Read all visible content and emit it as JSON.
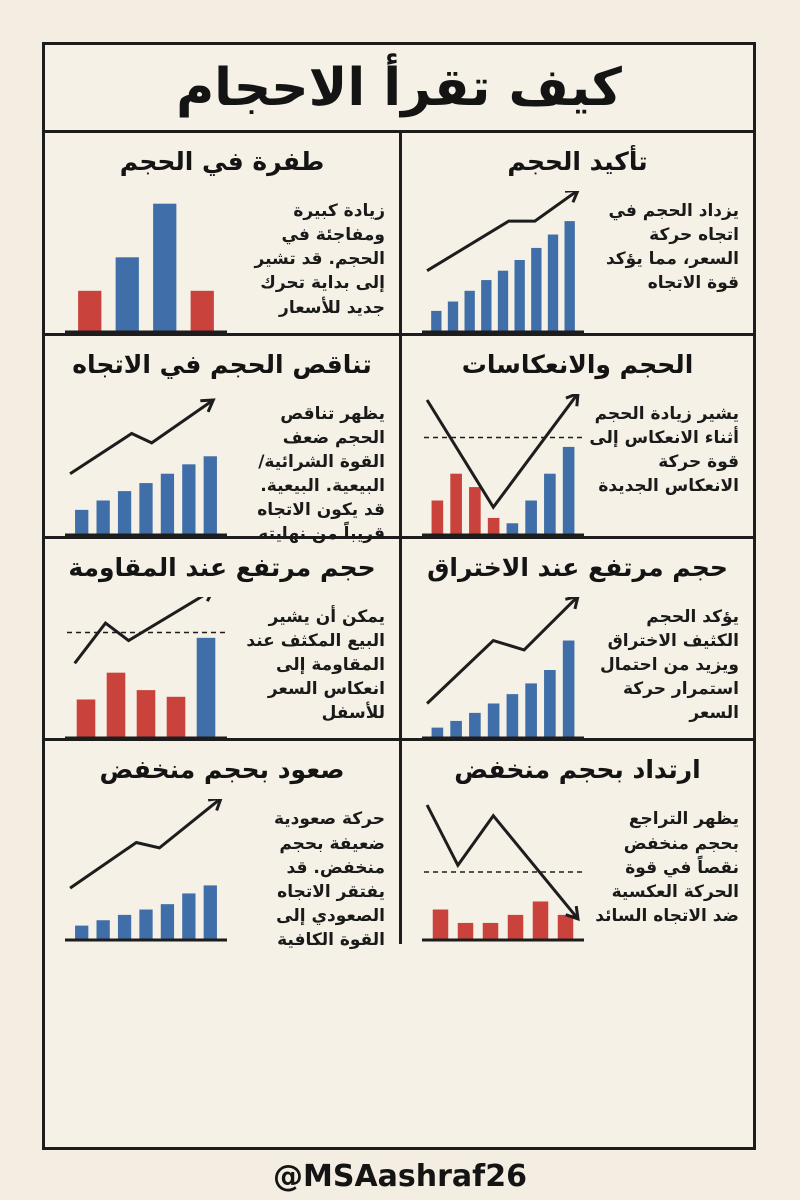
{
  "title": "كيف تقرأ الاحجام",
  "footer_handle": "@MSAashraf26",
  "colors": {
    "blue": "#3f6ea8",
    "red": "#c9423c",
    "ink": "#1d1d1d"
  },
  "panels": [
    {
      "id": "p1",
      "title": "طفرة في الحجم",
      "description": "زيادة كبيرة ومفاجئة في الحجم. قد تشير إلى بداية تحرك جديد للأسعار",
      "bars": [
        {
          "v": 0.3,
          "c": "red"
        },
        {
          "v": 0.55,
          "c": "blue"
        },
        {
          "v": 0.95,
          "c": "blue"
        },
        {
          "v": 0.3,
          "c": "red"
        }
      ],
      "line": [],
      "arrow": false,
      "dashed": null
    },
    {
      "id": "p2",
      "title": "تأكيد الحجم",
      "description": "يزداد الحجم في اتجاه حركة السعر، مما يؤكد قوة الاتجاه",
      "bars": [
        {
          "v": 0.15,
          "c": "blue"
        },
        {
          "v": 0.22,
          "c": "blue"
        },
        {
          "v": 0.3,
          "c": "blue"
        },
        {
          "v": 0.38,
          "c": "blue"
        },
        {
          "v": 0.45,
          "c": "blue"
        },
        {
          "v": 0.53,
          "c": "blue"
        },
        {
          "v": 0.62,
          "c": "blue"
        },
        {
          "v": 0.72,
          "c": "blue"
        },
        {
          "v": 0.82,
          "c": "blue"
        }
      ],
      "line": [
        [
          0.02,
          0.45
        ],
        [
          0.55,
          0.82
        ],
        [
          0.72,
          0.82
        ],
        [
          1.0,
          1.05
        ]
      ],
      "arrow": true,
      "dashed": null
    },
    {
      "id": "p3",
      "title": "تناقص الحجم في الاتجاه",
      "description": "يظهر تناقص الحجم ضعف القوة الشرائية/البيعية. البيعية. قد يكون الاتجاه قريباً من نهايته",
      "bars": [
        {
          "v": 0.18,
          "c": "blue"
        },
        {
          "v": 0.25,
          "c": "blue"
        },
        {
          "v": 0.32,
          "c": "blue"
        },
        {
          "v": 0.38,
          "c": "blue"
        },
        {
          "v": 0.45,
          "c": "blue"
        },
        {
          "v": 0.52,
          "c": "blue"
        },
        {
          "v": 0.58,
          "c": "blue"
        }
      ],
      "line": [
        [
          0.02,
          0.45
        ],
        [
          0.42,
          0.75
        ],
        [
          0.55,
          0.68
        ],
        [
          0.95,
          1.0
        ]
      ],
      "arrow": true,
      "dashed": null
    },
    {
      "id": "p4",
      "title": "الحجم والانعكاسات",
      "description": "يشير زيادة الحجم أثناء الانعكاس إلى قوة حركة الانعكاس الجديدة",
      "bars": [
        {
          "v": 0.25,
          "c": "red"
        },
        {
          "v": 0.45,
          "c": "red"
        },
        {
          "v": 0.35,
          "c": "red"
        },
        {
          "v": 0.12,
          "c": "red"
        },
        {
          "v": 0.08,
          "c": "blue"
        },
        {
          "v": 0.25,
          "c": "blue"
        },
        {
          "v": 0.45,
          "c": "blue"
        },
        {
          "v": 0.65,
          "c": "blue"
        }
      ],
      "line": [
        [
          0.02,
          1.0
        ],
        [
          0.45,
          0.2
        ],
        [
          1.0,
          1.05
        ]
      ],
      "arrow": true,
      "dashed": 0.72
    },
    {
      "id": "p5",
      "title": "حجم مرتفع عند المقاومة",
      "description": "يمكن أن يشير البيع المكثف عند المقاومة إلى انعكاس السعر للأسفل",
      "bars": [
        {
          "v": 0.28,
          "c": "red"
        },
        {
          "v": 0.48,
          "c": "red"
        },
        {
          "v": 0.35,
          "c": "red"
        },
        {
          "v": 0.3,
          "c": "red"
        },
        {
          "v": 0.74,
          "c": "blue"
        }
      ],
      "line": [
        [
          0.05,
          0.55
        ],
        [
          0.25,
          0.85
        ],
        [
          0.4,
          0.72
        ],
        [
          0.95,
          1.1
        ]
      ],
      "arrow": true,
      "dashed": 0.78
    },
    {
      "id": "p6",
      "title": "حجم مرتفع عند الاختراق",
      "description": "يؤكد الحجم الكثيف الاختراق ويزيد من احتمال استمرار حركة السعر",
      "bars": [
        {
          "v": 0.07,
          "c": "blue"
        },
        {
          "v": 0.12,
          "c": "blue"
        },
        {
          "v": 0.18,
          "c": "blue"
        },
        {
          "v": 0.25,
          "c": "blue"
        },
        {
          "v": 0.32,
          "c": "blue"
        },
        {
          "v": 0.4,
          "c": "blue"
        },
        {
          "v": 0.5,
          "c": "blue"
        },
        {
          "v": 0.72,
          "c": "blue"
        }
      ],
      "line": [
        [
          0.02,
          0.25
        ],
        [
          0.45,
          0.72
        ],
        [
          0.65,
          0.65
        ],
        [
          1.0,
          1.05
        ]
      ],
      "arrow": true,
      "dashed": null
    },
    {
      "id": "p7",
      "title": "صعود بحجم منخفض",
      "description": "حركة صعودية ضعيفة بحجم منخفض. قد يفتقر الاتجاه الصعودي إلى القوة الكافية",
      "bars": [
        {
          "v": 0.1,
          "c": "blue"
        },
        {
          "v": 0.14,
          "c": "blue"
        },
        {
          "v": 0.18,
          "c": "blue"
        },
        {
          "v": 0.22,
          "c": "blue"
        },
        {
          "v": 0.26,
          "c": "blue"
        },
        {
          "v": 0.34,
          "c": "blue"
        },
        {
          "v": 0.4,
          "c": "blue"
        }
      ],
      "line": [
        [
          0.02,
          0.38
        ],
        [
          0.45,
          0.72
        ],
        [
          0.6,
          0.68
        ],
        [
          1.0,
          1.05
        ]
      ],
      "arrow": true,
      "dashed": null
    },
    {
      "id": "p8",
      "title": "ارتداد بحجم منخفض",
      "description": "يظهر التراجع بحجم منخفض نقصاً في قوة الحركة العكسية ضد الاتجاه السائد",
      "bars": [
        {
          "v": 0.22,
          "c": "red"
        },
        {
          "v": 0.12,
          "c": "red"
        },
        {
          "v": 0.12,
          "c": "red"
        },
        {
          "v": 0.18,
          "c": "red"
        },
        {
          "v": 0.28,
          "c": "red"
        },
        {
          "v": 0.18,
          "c": "red"
        }
      ],
      "line": [
        [
          0.02,
          1.0
        ],
        [
          0.22,
          0.55
        ],
        [
          0.45,
          0.92
        ],
        [
          1.0,
          0.15
        ]
      ],
      "arrow": true,
      "dashed": 0.5
    }
  ]
}
